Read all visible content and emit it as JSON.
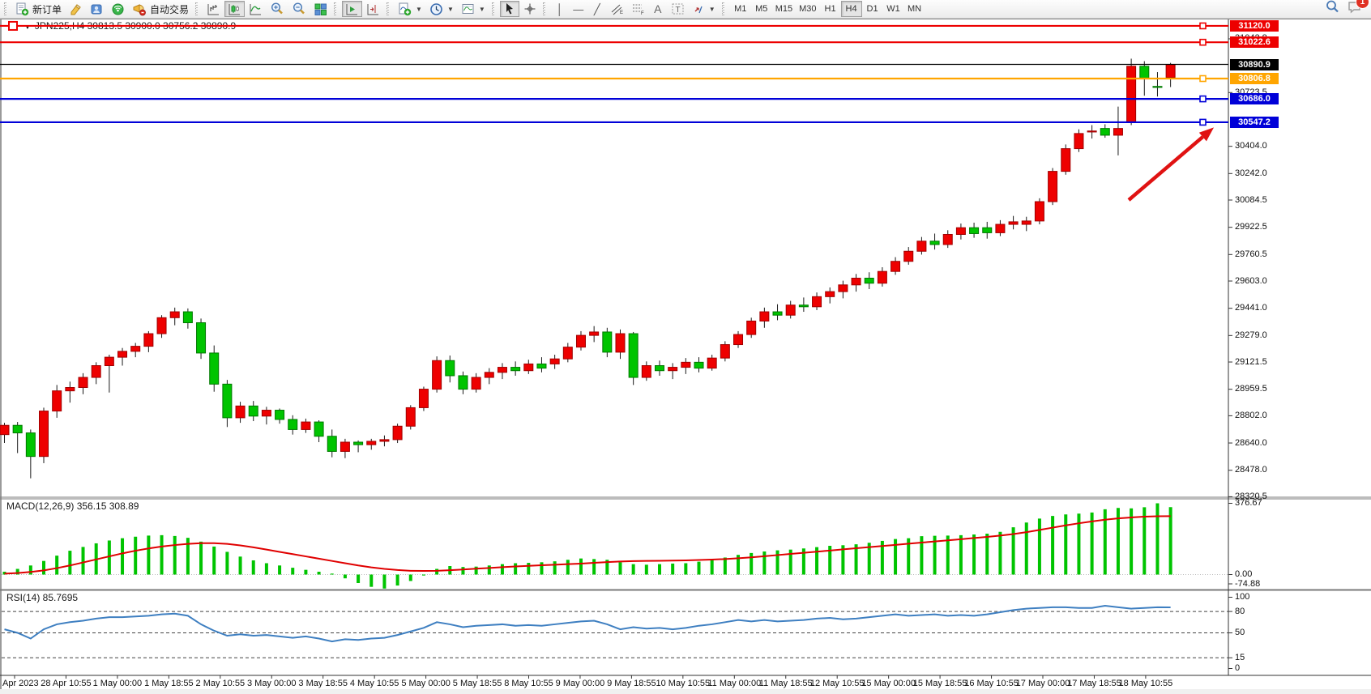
{
  "toolbar": {
    "new_order_label": "新订单",
    "autotrading_label": "自动交易",
    "timeframes": [
      "M1",
      "M5",
      "M15",
      "M30",
      "H1",
      "H4",
      "D1",
      "W1",
      "MN"
    ],
    "active_timeframe": "H4",
    "notification_count": "1",
    "icons": [
      "new-order-icon",
      "metaeditor-icon",
      "market-icon",
      "signals-icon",
      "autotrading-icon",
      "bar-chart-icon",
      "candlestick-chart-icon",
      "line-chart-icon",
      "zoom-in-icon",
      "zoom-out-icon",
      "tile-windows-icon",
      "auto-scroll-icon",
      "chart-shift-icon",
      "indicators-icon",
      "periods-clock-icon",
      "templates-icon",
      "cursor-icon",
      "crosshair-icon",
      "vertical-line-icon",
      "horizontal-line-icon",
      "trendline-icon",
      "equidistant-channel-icon",
      "fibonacci-icon",
      "text-icon",
      "text-label-icon",
      "arrows-icon",
      "search-icon",
      "notifications-icon"
    ]
  },
  "chart": {
    "title": "JPN225,H4 30813.5 30900.0 30756.2 30890.9",
    "symbol": "JPN225",
    "period": "H4",
    "ohlc": {
      "open": "30813.5",
      "high": "30900.0",
      "low": "30756.2",
      "close": "30890.9"
    },
    "current_price": {
      "value": 30890.9,
      "label": "30890.9"
    },
    "price_ticks": [
      "31042.8",
      "30723.5",
      "30404.0",
      "30242.0",
      "30084.5",
      "29922.5",
      "29760.5",
      "29603.0",
      "29441.0",
      "29279.0",
      "29121.5",
      "28959.5",
      "28802.0",
      "28640.0",
      "28478.0",
      "28320.5"
    ],
    "hlines": [
      {
        "price": 31120.0,
        "label": "31120.0",
        "color": "#ED0000",
        "left_handle": true
      },
      {
        "price": 31022.6,
        "label": "31022.6",
        "color": "#ED0000",
        "left_handle": false
      },
      {
        "price": 30806.8,
        "label": "30806.8",
        "color": "#FFA500",
        "left_handle": false
      },
      {
        "price": 30686.0,
        "label": "30686.0",
        "color": "#0000D8",
        "left_handle": false
      },
      {
        "price": 30547.2,
        "label": "30547.2",
        "color": "#0000D8",
        "left_handle": false
      }
    ],
    "colors": {
      "bull": "#EE0000",
      "bear": "#00C400",
      "wick": "#1a1a1a",
      "macd_hist": "#00C400",
      "macd_signal": "#E00000",
      "rsi_line": "#3E7FC1",
      "current_price": "#000000",
      "arrow": "#E01212"
    },
    "candles": [
      [
        28690,
        28760,
        28640,
        28745
      ],
      [
        28745,
        28765,
        28580,
        28700
      ],
      [
        28700,
        28720,
        28430,
        28560
      ],
      [
        28560,
        28850,
        28520,
        28830
      ],
      [
        28830,
        28985,
        28790,
        28950
      ],
      [
        28950,
        29005,
        28880,
        28970
      ],
      [
        28970,
        29055,
        28930,
        29030
      ],
      [
        29030,
        29120,
        28990,
        29100
      ],
      [
        29100,
        29165,
        28940,
        29150
      ],
      [
        29150,
        29205,
        29100,
        29185
      ],
      [
        29185,
        29235,
        29150,
        29215
      ],
      [
        29215,
        29305,
        29180,
        29290
      ],
      [
        29290,
        29400,
        29265,
        29385
      ],
      [
        29385,
        29445,
        29340,
        29420
      ],
      [
        29420,
        29440,
        29320,
        29355
      ],
      [
        29355,
        29380,
        29140,
        29175
      ],
      [
        29175,
        29220,
        28945,
        28990
      ],
      [
        28990,
        29015,
        28735,
        28790
      ],
      [
        28790,
        28885,
        28760,
        28860
      ],
      [
        28860,
        28890,
        28770,
        28800
      ],
      [
        28800,
        28855,
        28750,
        28835
      ],
      [
        28835,
        28845,
        28755,
        28780
      ],
      [
        28780,
        28805,
        28690,
        28720
      ],
      [
        28720,
        28785,
        28700,
        28765
      ],
      [
        28765,
        28775,
        28645,
        28680
      ],
      [
        28680,
        28720,
        28555,
        28590
      ],
      [
        28590,
        28665,
        28550,
        28645
      ],
      [
        28645,
        28655,
        28585,
        28630
      ],
      [
        28630,
        28665,
        28600,
        28650
      ],
      [
        28650,
        28685,
        28620,
        28660
      ],
      [
        28660,
        28755,
        28640,
        28740
      ],
      [
        28740,
        28865,
        28720,
        28850
      ],
      [
        28850,
        28975,
        28830,
        28960
      ],
      [
        28960,
        29155,
        28940,
        29130
      ],
      [
        29130,
        29160,
        29000,
        29040
      ],
      [
        29040,
        29065,
        28930,
        28960
      ],
      [
        28960,
        29055,
        28940,
        29030
      ],
      [
        29030,
        29085,
        28990,
        29060
      ],
      [
        29060,
        29115,
        29020,
        29090
      ],
      [
        29090,
        29125,
        29040,
        29070
      ],
      [
        29070,
        29135,
        29050,
        29110
      ],
      [
        29110,
        29150,
        29060,
        29085
      ],
      [
        29110,
        29165,
        29080,
        29140
      ],
      [
        29140,
        29235,
        29120,
        29210
      ],
      [
        29210,
        29305,
        29190,
        29280
      ],
      [
        29280,
        29335,
        29240,
        29300
      ],
      [
        29300,
        29325,
        29150,
        29180
      ],
      [
        29180,
        29315,
        29140,
        29290
      ],
      [
        29290,
        29300,
        28985,
        29030
      ],
      [
        29030,
        29125,
        29010,
        29100
      ],
      [
        29100,
        29130,
        29040,
        29070
      ],
      [
        29070,
        29115,
        29020,
        29090
      ],
      [
        29090,
        29145,
        29050,
        29120
      ],
      [
        29120,
        29150,
        29060,
        29085
      ],
      [
        29085,
        29165,
        29070,
        29145
      ],
      [
        29145,
        29245,
        29125,
        29225
      ],
      [
        29225,
        29305,
        29205,
        29285
      ],
      [
        29285,
        29385,
        29265,
        29365
      ],
      [
        29365,
        29445,
        29325,
        29420
      ],
      [
        29420,
        29465,
        29370,
        29400
      ],
      [
        29400,
        29485,
        29380,
        29460
      ],
      [
        29460,
        29505,
        29420,
        29450
      ],
      [
        29450,
        29535,
        29430,
        29510
      ],
      [
        29510,
        29565,
        29470,
        29540
      ],
      [
        29540,
        29605,
        29500,
        29580
      ],
      [
        29580,
        29645,
        29540,
        29620
      ],
      [
        29620,
        29655,
        29555,
        29590
      ],
      [
        29590,
        29685,
        29570,
        29660
      ],
      [
        29660,
        29745,
        29640,
        29720
      ],
      [
        29720,
        29805,
        29700,
        29780
      ],
      [
        29780,
        29865,
        29760,
        29840
      ],
      [
        29840,
        29885,
        29790,
        29820
      ],
      [
        29820,
        29905,
        29800,
        29880
      ],
      [
        29880,
        29945,
        29850,
        29920
      ],
      [
        29920,
        29950,
        29860,
        29885
      ],
      [
        29920,
        29955,
        29855,
        29890
      ],
      [
        29890,
        29965,
        29870,
        29940
      ],
      [
        29940,
        29990,
        29910,
        29955
      ],
      [
        29940,
        29985,
        29900,
        29960
      ],
      [
        29960,
        30095,
        29940,
        30075
      ],
      [
        30075,
        30275,
        30055,
        30255
      ],
      [
        30255,
        30415,
        30235,
        30390
      ],
      [
        30390,
        30505,
        30370,
        30480
      ],
      [
        30490,
        30530,
        30450,
        30495
      ],
      [
        30510,
        30535,
        30455,
        30470
      ],
      [
        30470,
        30640,
        30350,
        30510
      ],
      [
        30545,
        30925,
        30530,
        30880
      ],
      [
        30880,
        30910,
        30705,
        30810
      ],
      [
        30760,
        30845,
        30700,
        30755
      ],
      [
        30813.5,
        30900.0,
        30756.2,
        30890.9
      ]
    ]
  },
  "macd": {
    "label": "MACD(12,26,9) 356.15 308.89",
    "axis_values": [
      {
        "v": 376.67,
        "t": "376.67"
      },
      {
        "v": 0,
        "t": "0.00"
      },
      {
        "v": -74.88,
        "t": "-74.88"
      }
    ],
    "histogram": [
      15,
      30,
      48,
      72,
      100,
      126,
      146,
      165,
      180,
      192,
      200,
      206,
      208,
      204,
      194,
      174,
      148,
      120,
      95,
      75,
      60,
      48,
      36,
      25,
      15,
      5,
      -20,
      -45,
      -65,
      -74,
      -58,
      -34,
      -5,
      30,
      45,
      40,
      42,
      48,
      55,
      60,
      62,
      65,
      70,
      78,
      85,
      82,
      78,
      65,
      55,
      52,
      55,
      58,
      60,
      68,
      78,
      90,
      104,
      114,
      122,
      128,
      132,
      138,
      145,
      152,
      155,
      160,
      168,
      178,
      188,
      192,
      203,
      205,
      206,
      208,
      212,
      216,
      226,
      250,
      275,
      296,
      310,
      318,
      322,
      328,
      345,
      352,
      350,
      356,
      376.67,
      356.15
    ],
    "signal": [
      5,
      8,
      14,
      22,
      34,
      48,
      64,
      80,
      96,
      112,
      126,
      138,
      148,
      156,
      162,
      166,
      166,
      162,
      154,
      144,
      132,
      120,
      108,
      96,
      84,
      72,
      60,
      48,
      38,
      30,
      24,
      20,
      19,
      20,
      23,
      27,
      31,
      35,
      39,
      43,
      46,
      49,
      52,
      55,
      58,
      62,
      66,
      69,
      71,
      72,
      73,
      74,
      75,
      77,
      79,
      82,
      86,
      91,
      97,
      103,
      109,
      115,
      121,
      127,
      133,
      139,
      145,
      151,
      157,
      163,
      169,
      175,
      181,
      187,
      193,
      199,
      206,
      214,
      224,
      236,
      248,
      260,
      271,
      281,
      290,
      297,
      302,
      306,
      308,
      308.89
    ]
  },
  "rsi": {
    "label": "RSI(14) 85.7695",
    "axis_values": [
      {
        "v": 100,
        "t": "100"
      },
      {
        "v": 80,
        "t": "80"
      },
      {
        "v": 50,
        "t": "50"
      },
      {
        "v": 15,
        "t": "15"
      },
      {
        "v": 0,
        "t": "0"
      }
    ],
    "levels": [
      80,
      50,
      15
    ],
    "values": [
      55,
      50,
      42,
      55,
      62,
      65,
      67,
      70,
      72,
      72,
      73,
      74,
      76,
      77,
      74,
      62,
      53,
      46,
      48,
      46,
      47,
      45,
      43,
      45,
      42,
      38,
      41,
      40,
      42,
      43,
      47,
      52,
      57,
      65,
      62,
      58,
      60,
      61,
      62,
      60,
      61,
      60,
      62,
      64,
      66,
      67,
      62,
      55,
      58,
      56,
      57,
      55,
      57,
      60,
      62,
      65,
      68,
      66,
      68,
      66,
      67,
      68,
      70,
      71,
      69,
      70,
      72,
      74,
      76,
      74,
      75,
      76,
      74,
      75,
      74,
      76,
      79,
      82,
      84,
      85,
      86,
      86,
      85,
      85,
      88,
      86,
      84,
      85,
      86,
      85.7695
    ]
  },
  "time_axis": {
    "labels": [
      "27 Apr 2023",
      "28 Apr 10:55",
      "1 May 00:00",
      "1 May 18:55",
      "2 May 10:55",
      "3 May 00:00",
      "3 May 18:55",
      "4 May 10:55",
      "5 May 00:00",
      "5 May 18:55",
      "8 May 10:55",
      "9 May 00:00",
      "9 May 18:55",
      "10 May 10:55",
      "11 May 00:00",
      "11 May 18:55",
      "12 May 10:55",
      "15 May 00:00",
      "15 May 18:55",
      "16 May 10:55",
      "17 May 00:00",
      "17 May 18:55",
      "18 May 10:55"
    ]
  },
  "annotation": {
    "arrow": {
      "from": [
        1393,
        247
      ],
      "to": [
        1495,
        160
      ]
    }
  }
}
